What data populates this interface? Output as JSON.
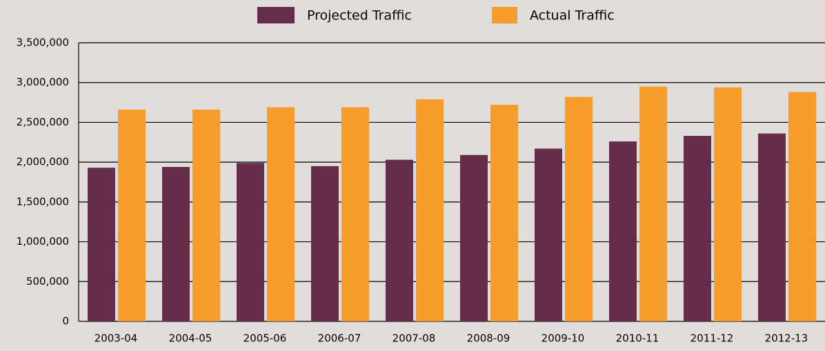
{
  "chart_data": {
    "type": "bar",
    "categories": [
      "2003-04",
      "2004-05",
      "2005-06",
      "2006-07",
      "2007-08",
      "2008-09",
      "2009-10",
      "2010-11",
      "2011-12",
      "2012-13"
    ],
    "series": [
      {
        "name": "Projected Traffic",
        "color": "#652d4a",
        "values": [
          1930000,
          1940000,
          1990000,
          1950000,
          2030000,
          2090000,
          2170000,
          2260000,
          2330000,
          2360000
        ]
      },
      {
        "name": "Actual Traffic",
        "color": "#f89c2b",
        "values": [
          2660000,
          2660000,
          2690000,
          2690000,
          2790000,
          2720000,
          2820000,
          2950000,
          2940000,
          2880000
        ]
      }
    ],
    "ylim": [
      0,
      3500000
    ],
    "yticks": [
      0,
      {
        "value": 500000,
        "label": "500,000"
      },
      {
        "value": 1000000,
        "label": "1,000,000"
      },
      {
        "value": 1500000,
        "label": "1,500,000"
      },
      {
        "value": 2000000,
        "label": "2,000,000"
      },
      {
        "value": 2500000,
        "label": "2,500,000"
      },
      {
        "value": 3000000,
        "label": "3,000,000"
      },
      {
        "value": 3500000,
        "label": "3,500,000"
      }
    ],
    "grid": true,
    "legend": "top"
  }
}
